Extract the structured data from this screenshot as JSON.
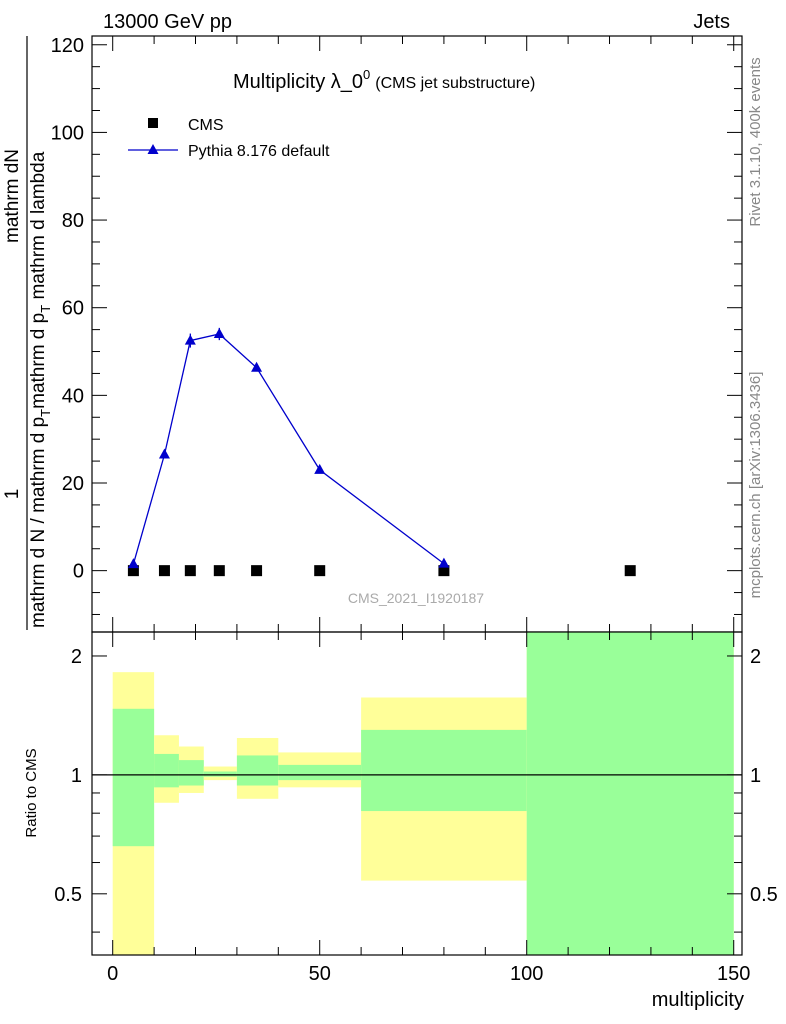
{
  "header": {
    "left": "13000 GeV pp",
    "right": "Jets"
  },
  "side_labels": {
    "version": "Rivet 3.1.10,  400k events",
    "source": "mcplots.cern.ch [arXiv:1306.3436]"
  },
  "chart_data": [
    {
      "type": "line",
      "panel": "main",
      "title": "Multiplicity λ_0",
      "title_superscript": "0",
      "subtitle": "(CMS jet substructure)",
      "watermark": "CMS_2021_I1920187",
      "ylabel": {
        "prefix": "1",
        "numerator": "mathrm dN",
        "denominator_a": "mathrm d N / mathrm d p",
        "denominator_a_sub": "T",
        "denominator_b": "mathrm d p",
        "denominator_b_sub": "T",
        "denominator_c": " mathrm d lambda"
      },
      "xlim": [
        -5,
        152
      ],
      "ylim": [
        -14,
        122
      ],
      "yticks": [
        0,
        20,
        40,
        60,
        80,
        100,
        120
      ],
      "xticks": [
        0,
        50,
        100,
        150
      ],
      "legend_position": "top-left",
      "series": [
        {
          "name": "CMS",
          "color": "#000000",
          "marker": "square",
          "x": [
            5,
            12.5,
            18.75,
            25.75,
            34.75,
            50,
            80,
            125
          ],
          "y": [
            0,
            0,
            0,
            0,
            0,
            0,
            0,
            0
          ]
        },
        {
          "name": "Pythia 8.176 default",
          "color": "#0000cc",
          "marker": "triangle",
          "x": [
            5,
            12.5,
            18.75,
            25.75,
            34.75,
            50,
            80
          ],
          "y": [
            1.5,
            26.5,
            52.5,
            54,
            46.3,
            23,
            1.6
          ],
          "yerr": [
            0.4,
            0.9,
            1.6,
            1.4,
            0.8,
            0.5,
            0.2
          ]
        }
      ]
    },
    {
      "type": "area",
      "panel": "ratio",
      "ylabel": "Ratio to CMS",
      "xlabel": "multiplicity",
      "xlim": [
        -5,
        152
      ],
      "ylim": [
        0.35,
        2.3
      ],
      "yticks": [
        0.5,
        1,
        2
      ],
      "ytick_labels": [
        "0.5",
        "1",
        "2"
      ],
      "xticks": [
        0,
        50,
        100,
        150
      ],
      "xtick_labels": [
        "0",
        "50",
        "100",
        "150"
      ],
      "reference_line": 1,
      "bands": [
        {
          "x0": 0,
          "x1": 10,
          "outer": [
            0.35,
            1.82
          ],
          "inner": [
            0.66,
            1.47
          ]
        },
        {
          "x0": 10,
          "x1": 16,
          "outer": [
            0.85,
            1.26
          ],
          "inner": [
            0.93,
            1.13
          ]
        },
        {
          "x0": 16,
          "x1": 22,
          "outer": [
            0.9,
            1.18
          ],
          "inner": [
            0.94,
            1.09
          ]
        },
        {
          "x0": 22,
          "x1": 30,
          "outer": [
            0.97,
            1.05
          ],
          "inner": [
            0.99,
            1.02
          ]
        },
        {
          "x0": 30,
          "x1": 40,
          "outer": [
            0.87,
            1.24
          ],
          "inner": [
            0.94,
            1.12
          ]
        },
        {
          "x0": 40,
          "x1": 60,
          "outer": [
            0.93,
            1.14
          ],
          "inner": [
            0.97,
            1.06
          ]
        },
        {
          "x0": 60,
          "x1": 100,
          "outer": [
            0.54,
            1.57
          ],
          "inner": [
            0.81,
            1.3
          ]
        },
        {
          "x0": 100,
          "x1": 150,
          "outer": [
            0.35,
            2.3
          ],
          "inner": [
            0.35,
            2.3
          ]
        }
      ],
      "band_colors": {
        "outer": "#ffff99",
        "inner": "#99ff99"
      }
    }
  ]
}
